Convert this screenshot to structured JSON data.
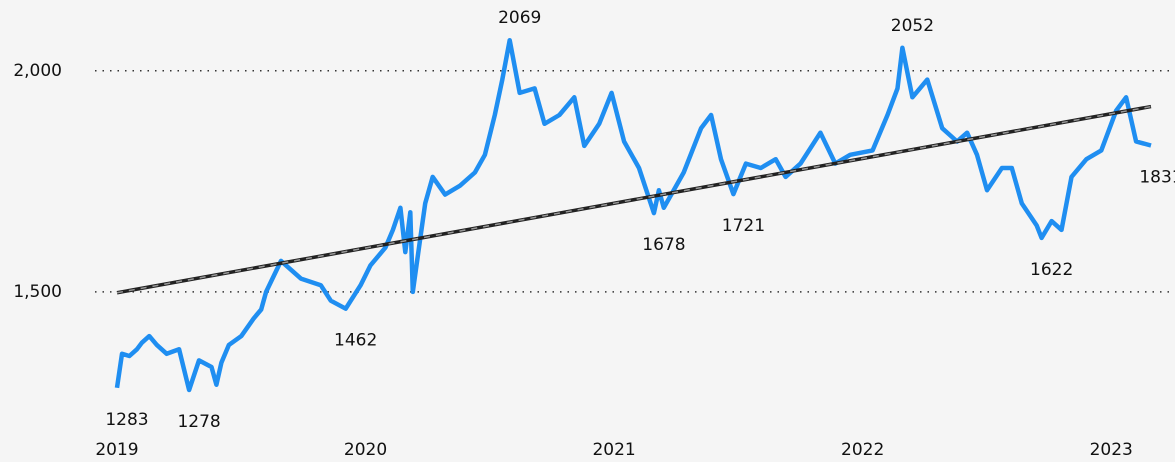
{
  "chart_data": {
    "type": "line",
    "x": [
      2019.0,
      2019.02,
      2019.05,
      2019.08,
      2019.1,
      2019.13,
      2019.16,
      2019.2,
      2019.25,
      2019.29,
      2019.33,
      2019.38,
      2019.4,
      2019.42,
      2019.45,
      2019.5,
      2019.55,
      2019.58,
      2019.6,
      2019.66,
      2019.74,
      2019.82,
      2019.86,
      2019.92,
      2019.98,
      2020.02,
      2020.08,
      2020.11,
      2020.14,
      2020.16,
      2020.18,
      2020.19,
      2020.22,
      2020.24,
      2020.27,
      2020.32,
      2020.38,
      2020.44,
      2020.48,
      2020.52,
      2020.55,
      2020.58,
      2020.62,
      2020.68,
      2020.72,
      2020.78,
      2020.84,
      2020.88,
      2020.94,
      2020.99,
      2021.04,
      2021.1,
      2021.16,
      2021.18,
      2021.2,
      2021.28,
      2021.35,
      2021.39,
      2021.43,
      2021.48,
      2021.53,
      2021.59,
      2021.65,
      2021.69,
      2021.75,
      2021.83,
      2021.89,
      2021.95,
      2022.04,
      2022.1,
      2022.14,
      2022.16,
      2022.2,
      2022.26,
      2022.32,
      2022.38,
      2022.42,
      2022.46,
      2022.5,
      2022.56,
      2022.6,
      2022.64,
      2022.7,
      2022.72,
      2022.76,
      2022.8,
      2022.84,
      2022.9,
      2022.96,
      2023.02,
      2023.06,
      2023.1,
      2023.16
    ],
    "values": [
      1283,
      1360,
      1355,
      1370,
      1385,
      1400,
      1380,
      1360,
      1370,
      1278,
      1345,
      1330,
      1290,
      1340,
      1380,
      1400,
      1440,
      1460,
      1500,
      1570,
      1530,
      1515,
      1480,
      1462,
      1515,
      1560,
      1600,
      1640,
      1690,
      1590,
      1680,
      1500,
      1620,
      1700,
      1760,
      1720,
      1740,
      1770,
      1810,
      1900,
      1980,
      2069,
      1950,
      1960,
      1880,
      1900,
      1940,
      1830,
      1880,
      1950,
      1840,
      1780,
      1678,
      1730,
      1690,
      1770,
      1870,
      1900,
      1800,
      1721,
      1790,
      1780,
      1800,
      1760,
      1790,
      1860,
      1790,
      1810,
      1820,
      1900,
      1960,
      2052,
      1940,
      1980,
      1870,
      1840,
      1860,
      1810,
      1730,
      1780,
      1780,
      1700,
      1650,
      1622,
      1660,
      1640,
      1760,
      1800,
      1820,
      1910,
      1940,
      1840,
      1831
    ],
    "color": "#1f8ef1",
    "trend": {
      "x": [
        2019.0,
        2023.16
      ],
      "values": [
        1498,
        1919
      ]
    },
    "annotations": [
      {
        "x": 2019.0,
        "y": 1283
      },
      {
        "x": 2019.29,
        "y": 1278
      },
      {
        "x": 2019.92,
        "y": 1462
      },
      {
        "x": 2020.58,
        "y": 2069
      },
      {
        "x": 2021.16,
        "y": 1678
      },
      {
        "x": 2021.48,
        "y": 1721
      },
      {
        "x": 2022.16,
        "y": 2052
      },
      {
        "x": 2022.72,
        "y": 1622
      },
      {
        "x": 2023.16,
        "y": 1831
      }
    ],
    "xlim": [
      2019.0,
      2023.16
    ],
    "xticks": [
      2019,
      2020,
      2021,
      2022,
      2023
    ],
    "ylim": [
      1165,
      2160
    ],
    "yticks": [
      {
        "value": 1500,
        "label": "1,500"
      },
      {
        "value": 2000,
        "label": "2,000"
      }
    ],
    "grid": true
  }
}
